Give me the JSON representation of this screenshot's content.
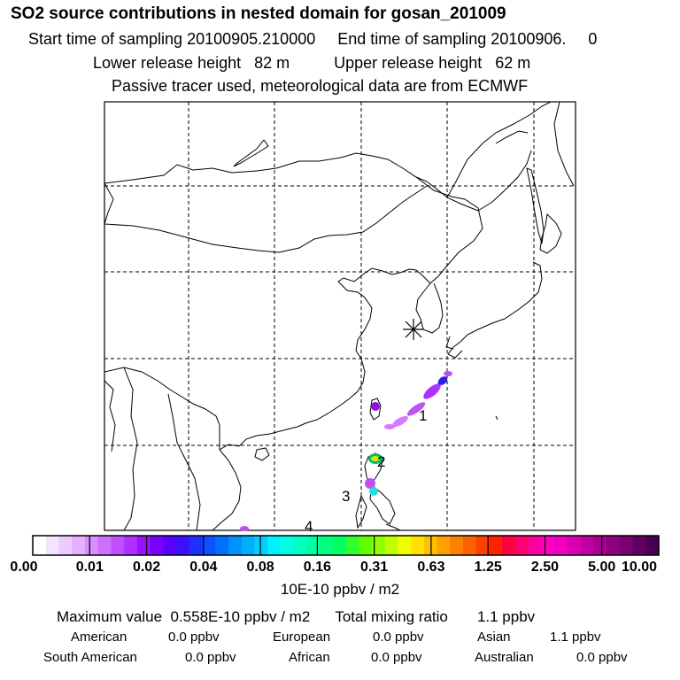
{
  "header": {
    "title": "SO2 source contributions in nested domain for gosan_201009",
    "sampling_line": "Start time of sampling 20100905.210000     End time of sampling 20100906.     0",
    "release_line": "Lower release height   82 m          Upper release height   62 m",
    "tracer_line": "Passive tracer used, meteorological data are from ECMWF"
  },
  "map": {
    "receptor_symbol": "asterisk",
    "source_labels": [
      "1",
      "2",
      "3",
      "4"
    ],
    "plume_colors": [
      "#c050f0",
      "#9010e0",
      "#3020e0",
      "#20e0e0",
      "#e8e000",
      "#00c060"
    ]
  },
  "colorbar": {
    "tick_labels": [
      "0.00",
      "0.01",
      "0.02",
      "0.04",
      "0.08",
      "0.16",
      "0.31",
      "0.63",
      "1.25",
      "2.50",
      "5.00",
      "10.00"
    ],
    "colors": [
      "#ffffff",
      "#f4e4ff",
      "#eccaff",
      "#e4b0ff",
      "#d890ff",
      "#cc70ff",
      "#c050ff",
      "#b030ff",
      "#9a10ff",
      "#7a00ff",
      "#5a00ff",
      "#3a10ff",
      "#2030ff",
      "#1050ff",
      "#0070ff",
      "#0090ff",
      "#00b0ff",
      "#00d0ff",
      "#00f0ff",
      "#00ffe0",
      "#00ffc0",
      "#00ffa0",
      "#00ff80",
      "#00ff60",
      "#30ff30",
      "#60ff00",
      "#90ff00",
      "#c0ff00",
      "#f0ff00",
      "#ffe000",
      "#ffc000",
      "#ffa000",
      "#ff8000",
      "#ff6000",
      "#ff4000",
      "#ff2000",
      "#ff0040",
      "#ff0070",
      "#ff00a0",
      "#ff00c0",
      "#f000c0",
      "#d800b0",
      "#c000a0",
      "#a80090",
      "#900080",
      "#780070",
      "#600060",
      "#480050"
    ],
    "unit": "10E-10 ppbv / m2"
  },
  "stats": {
    "max_line": "Maximum value  0.558E-10 ppbv / m2      Total mixing ratio       1.1 ppbv",
    "american_label": "American",
    "american_value": "0.0 ppbv",
    "european_label": "European",
    "european_value": "0.0 ppbv",
    "asian_label": "Asian",
    "asian_value": "1.1 ppbv",
    "south_american_label": "South American",
    "south_american_value": "0.0 ppbv",
    "african_label": "African",
    "african_value": "0.0 ppbv",
    "australian_label": "Australian",
    "australian_value": "0.0 ppbv"
  }
}
